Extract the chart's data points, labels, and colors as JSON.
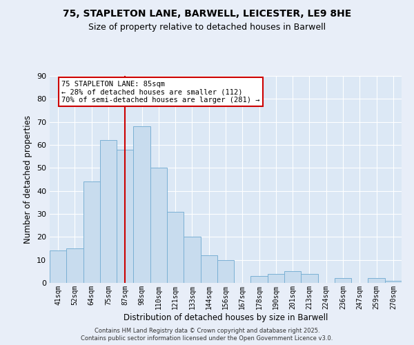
{
  "title1": "75, STAPLETON LANE, BARWELL, LEICESTER, LE9 8HE",
  "title2": "Size of property relative to detached houses in Barwell",
  "xlabel": "Distribution of detached houses by size in Barwell",
  "ylabel": "Number of detached properties",
  "bar_labels": [
    "41sqm",
    "52sqm",
    "64sqm",
    "75sqm",
    "87sqm",
    "98sqm",
    "110sqm",
    "121sqm",
    "133sqm",
    "144sqm",
    "156sqm",
    "167sqm",
    "178sqm",
    "190sqm",
    "201sqm",
    "213sqm",
    "224sqm",
    "236sqm",
    "247sqm",
    "259sqm",
    "270sqm"
  ],
  "bar_values": [
    14,
    15,
    44,
    62,
    58,
    68,
    50,
    31,
    20,
    12,
    10,
    0,
    3,
    4,
    5,
    4,
    0,
    2,
    0,
    2,
    1
  ],
  "bar_color": "#c8dcee",
  "bar_edge_color": "#7ab0d4",
  "vline_x_index": 4,
  "vline_color": "#cc0000",
  "ylim": [
    0,
    90
  ],
  "yticks": [
    0,
    10,
    20,
    30,
    40,
    50,
    60,
    70,
    80,
    90
  ],
  "annotation_text": "75 STAPLETON LANE: 85sqm\n← 28% of detached houses are smaller (112)\n70% of semi-detached houses are larger (281) →",
  "annotation_box_color": "#ffffff",
  "annotation_box_edge": "#cc0000",
  "footer1": "Contains HM Land Registry data © Crown copyright and database right 2025.",
  "footer2": "Contains public sector information licensed under the Open Government Licence v3.0.",
  "bg_color": "#e8eef8",
  "plot_bg_color": "#dce8f5",
  "grid_color": "#ffffff"
}
